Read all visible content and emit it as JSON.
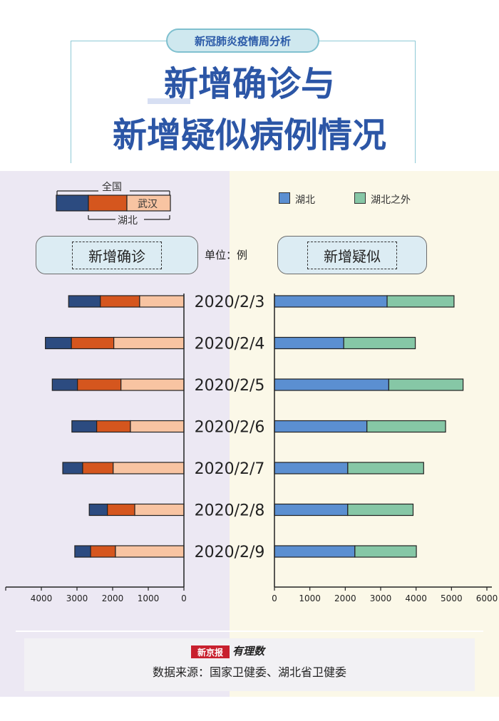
{
  "header": {
    "badge": "新冠肺炎疫情周分析",
    "title_line1": "新增确诊与",
    "title_line2": "新增疑似病例情况"
  },
  "left_legend": {
    "national": "全国",
    "wuhan": "武汉",
    "hubei": "湖北"
  },
  "right_legend": {
    "hubei": "湖北",
    "outside": "湖北之外"
  },
  "pills": {
    "confirmed": "新增确诊",
    "suspected": "新增疑似"
  },
  "unit": "单位：例",
  "footer": {
    "brand": "新京报",
    "brand2": "有理数",
    "source": "数据来源：国家卫健委、湖北省卫健委"
  },
  "colors": {
    "national": "#2c4b80",
    "hubei": "#d5561e",
    "wuhan": "#f8c4a2",
    "hubei_suspected": "#5b8fd1",
    "outside_suspected": "#86c7a6"
  },
  "chart_data": [
    {
      "type": "bar",
      "orientation": "horizontal",
      "direction": "right-to-left",
      "categories": [
        "2020/2/3",
        "2020/2/4",
        "2020/2/5",
        "2020/2/6",
        "2020/2/7",
        "2020/2/8",
        "2020/2/9"
      ],
      "series": [
        {
          "name": "全国",
          "values": [
            3235,
            3887,
            3694,
            3143,
            3399,
            2656,
            3062
          ]
        },
        {
          "name": "湖北",
          "values": [
            2345,
            3156,
            2987,
            2447,
            2841,
            2147,
            2618
          ]
        },
        {
          "name": "武汉",
          "values": [
            1242,
            1967,
            1766,
            1501,
            1985,
            1379,
            1921
          ]
        }
      ],
      "xlim": [
        0,
        4800
      ],
      "xticks": [
        0,
        1000,
        2000,
        3000,
        4000
      ],
      "tick_labels": [
        "0",
        "1000",
        "2000",
        "3000",
        "4000"
      ]
    },
    {
      "type": "bar",
      "orientation": "horizontal",
      "stacked": true,
      "categories": [
        "2020/2/3",
        "2020/2/4",
        "2020/2/5",
        "2020/2/6",
        "2020/2/7",
        "2020/2/8",
        "2020/2/9"
      ],
      "series": [
        {
          "name": "湖北",
          "values": [
            3182,
            1957,
            3229,
            2612,
            2071,
            2070,
            2272
          ]
        },
        {
          "name": "湖北之外",
          "values": [
            1890,
            2021,
            2099,
            2221,
            2143,
            1846,
            1736
          ]
        }
      ],
      "xlim": [
        0,
        6000
      ],
      "xticks": [
        0,
        1000,
        2000,
        3000,
        4000,
        5000,
        6000
      ],
      "tick_labels": [
        "0",
        "1000",
        "2000",
        "3000",
        "4000",
        "5000",
        "6000"
      ]
    }
  ]
}
